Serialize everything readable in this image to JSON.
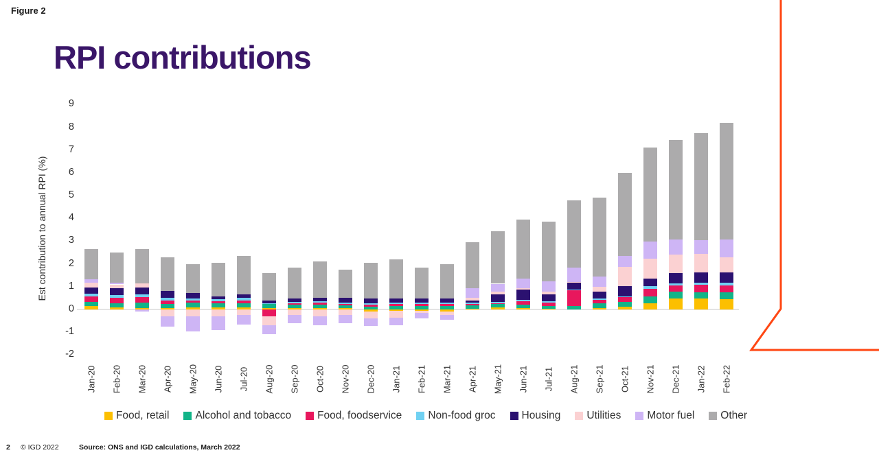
{
  "figure_label": "Figure 2",
  "title": "RPI contributions",
  "colors": {
    "title_text": "#3a1668",
    "accent_line": "#ff4713",
    "zero_line": "#e3e3e3",
    "axis_text": "#2e2e2e"
  },
  "footer": {
    "page_number": "2",
    "copyright": "© IGD 2022",
    "source": "Source: ONS and IGD calculations, March 2022"
  },
  "chart_data": {
    "type": "bar",
    "stacked": true,
    "title": "RPI contributions",
    "xlabel": "",
    "ylabel": "Est contribution to annual RPI (%)",
    "ylim": [
      -2,
      9
    ],
    "yticks": [
      9,
      8,
      7,
      6,
      5,
      4,
      3,
      2,
      1,
      0,
      -1,
      -2
    ],
    "grid": false,
    "legend_position": "bottom",
    "categories": [
      "Jan-20",
      "Feb-20",
      "Mar-20",
      "Apr-20",
      "May-20",
      "Jun-20",
      "Jul-20",
      "Aug-20",
      "Sep-20",
      "Oct-20",
      "Nov-20",
      "Dec-20",
      "Jan-21",
      "Feb-21",
      "Mar-21",
      "Apr-21",
      "May-21",
      "Jun-21",
      "Jul-21",
      "Aug-21",
      "Sep-21",
      "Oct-21",
      "Nov-21",
      "Dec-21",
      "Jan-22",
      "Feb-22"
    ],
    "series": [
      {
        "name": "Food, retail",
        "color": "#fcbf00",
        "values": [
          0.15,
          0.1,
          0.06,
          0.05,
          0.1,
          0.08,
          0.1,
          0.05,
          0.05,
          0.06,
          0.06,
          -0.08,
          -0.05,
          -0.05,
          -0.1,
          0.03,
          0.09,
          0.05,
          0.04,
          0.0,
          0.06,
          0.13,
          0.27,
          0.47,
          0.47,
          0.45
        ]
      },
      {
        "name": "Alcohol and tobacco",
        "color": "#12b488",
        "values": [
          0.18,
          0.18,
          0.23,
          0.2,
          0.2,
          0.18,
          0.18,
          0.18,
          0.15,
          0.15,
          0.12,
          0.12,
          0.15,
          0.15,
          0.15,
          0.15,
          0.14,
          0.16,
          0.12,
          0.16,
          0.21,
          0.19,
          0.31,
          0.31,
          0.29,
          0.3
        ]
      },
      {
        "name": "Food, foodservice",
        "color": "#e8175d",
        "values": [
          0.23,
          0.23,
          0.25,
          0.15,
          0.1,
          0.1,
          0.12,
          -0.3,
          0.06,
          0.08,
          0.06,
          0.1,
          0.08,
          0.08,
          0.08,
          0.05,
          0.05,
          0.16,
          0.15,
          0.67,
          0.15,
          0.21,
          0.31,
          0.26,
          0.33,
          0.3
        ]
      },
      {
        "name": "Non-food groc",
        "color": "#70d1f2",
        "values": [
          0.12,
          0.12,
          0.12,
          0.1,
          0.08,
          0.1,
          0.1,
          0.05,
          0.06,
          0.08,
          0.06,
          0.06,
          0.06,
          0.06,
          0.06,
          0.06,
          0.05,
          0.05,
          0.05,
          0.03,
          0.06,
          0.05,
          0.12,
          0.1,
          0.08,
          0.13
        ]
      },
      {
        "name": "Housing",
        "color": "#2b1170",
        "values": [
          0.27,
          0.29,
          0.29,
          0.3,
          0.25,
          0.12,
          0.15,
          0.12,
          0.15,
          0.15,
          0.2,
          0.2,
          0.2,
          0.2,
          0.2,
          0.1,
          0.34,
          0.44,
          0.31,
          0.31,
          0.29,
          0.43,
          0.34,
          0.46,
          0.45,
          0.45
        ]
      },
      {
        "name": "Utilities",
        "color": "#fbd1d2",
        "values": [
          0.23,
          0.18,
          0.21,
          -0.3,
          -0.3,
          -0.3,
          -0.25,
          -0.4,
          -0.25,
          -0.3,
          -0.25,
          -0.3,
          -0.3,
          -0.1,
          -0.15,
          0.12,
          0.1,
          0.06,
          0.12,
          0.05,
          0.21,
          0.85,
          0.87,
          0.82,
          0.82,
          0.65
        ]
      },
      {
        "name": "Motor fuel",
        "color": "#ceb5f5",
        "values": [
          0.16,
          0.08,
          -0.08,
          -0.45,
          -0.65,
          -0.6,
          -0.4,
          -0.4,
          -0.35,
          -0.4,
          -0.35,
          -0.35,
          -0.35,
          -0.25,
          -0.2,
          0.42,
          0.36,
          0.45,
          0.44,
          0.62,
          0.46,
          0.5,
          0.77,
          0.64,
          0.6,
          0.8
        ]
      },
      {
        "name": "Other",
        "color": "#acabac",
        "values": [
          1.31,
          1.32,
          1.49,
          1.5,
          1.27,
          1.47,
          1.7,
          1.2,
          1.38,
          1.58,
          1.25,
          1.57,
          1.71,
          1.36,
          1.51,
          2.02,
          2.32,
          2.58,
          2.62,
          2.96,
          3.46,
          3.64,
          4.11,
          4.39,
          4.71,
          5.12
        ]
      }
    ]
  }
}
